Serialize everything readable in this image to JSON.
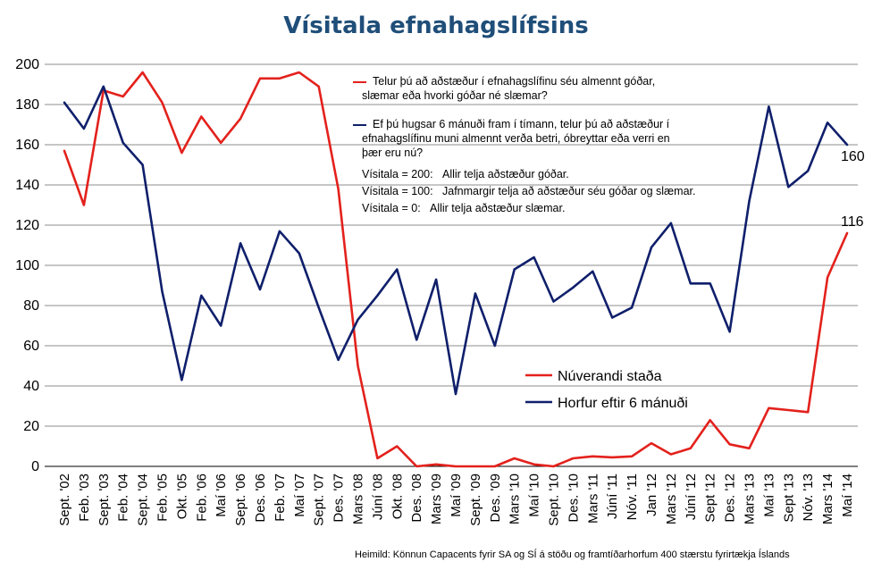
{
  "chart_data": {
    "type": "line",
    "title": "Vísitala efnahagslífsins",
    "xlabel": "",
    "ylabel": "",
    "ylim": [
      0,
      200
    ],
    "yticks": [
      0,
      20,
      40,
      60,
      80,
      100,
      120,
      140,
      160,
      180,
      200
    ],
    "categories": [
      "Sept. '02",
      "Feb. '03",
      "Sept. '03",
      "Feb. '04",
      "Sept. '04",
      "Feb. '05",
      "Okt. '05",
      "Feb. '06",
      "Maí '06",
      "Sept. '06",
      "Des. '06",
      "Feb. '07",
      "Maí '07",
      "Sept. '07",
      "Des. '07",
      "Mars '08",
      "Júní '08",
      "Okt. '08",
      "Des. '08",
      "Mars '09",
      "Maí '09",
      "Sept. '09",
      "Des. '09",
      "Mars '10",
      "Maí '10",
      "Sept. '10",
      "Des. '10",
      "Mars '11",
      "Júní '11",
      "Nóv. '11",
      "Jan '12",
      "Mars '12",
      "Júní '12",
      "Sept '12",
      "Des. '12",
      "Mars '13",
      "Maí '13",
      "Sept '13",
      "Nóv. '13",
      "Mars '14",
      "Maí '14"
    ],
    "series": [
      {
        "name": "Núverandi staða",
        "color": "#e3211c",
        "values": [
          157,
          130,
          187,
          184,
          196,
          181,
          156,
          174,
          161,
          173,
          193,
          193,
          196,
          189,
          138,
          50,
          4,
          10,
          0,
          1,
          0,
          0,
          0,
          4,
          1,
          0,
          4,
          5,
          4.5,
          5,
          11.5,
          6,
          9,
          23,
          11,
          9,
          29,
          28,
          27,
          94,
          116
        ]
      },
      {
        "name": "Horfur eftir 6 mánuði",
        "color": "#0f1f6b",
        "values": [
          181,
          168,
          189,
          161,
          150,
          87,
          43,
          85,
          70,
          111,
          88,
          117,
          106,
          79,
          53,
          73,
          85,
          98,
          63,
          93,
          36,
          86,
          60,
          98,
          104,
          82,
          89,
          97,
          74,
          79,
          109,
          121,
          91,
          91,
          67,
          132,
          179,
          139,
          147,
          171,
          160
        ]
      }
    ],
    "end_labels": {
      "red": "116",
      "blue": "160"
    },
    "legend": [
      "Núverandi staða",
      "Horfur eftir 6 mánuði"
    ],
    "legend_position": "lower-right-center",
    "annotations": {
      "q1_line1": "Telur þú að aðstæður í efnahagslífinu séu almennt góðar,",
      "q1_line2": "slæmar eða hvorki góðar né slæmar?",
      "q2_line1": "Ef þú hugsar 6 mánuði fram í tímann, telur þú að aðstæður í",
      "q2_line2": "efnahagslífinu muni almennt verða betri, óbreyttar eða verri en",
      "q2_line3": "þær eru nú?",
      "idx200_label": "Vísitala = 200:",
      "idx200_text": "Allir telja aðstæður góðar.",
      "idx100_label": "Vísitala = 100:",
      "idx100_text": "Jafnmargir telja að aðstæður séu góðar og slæmar.",
      "idx0_label": "Vísitala = 0:",
      "idx0_text": "Allir telja aðstæður slæmar."
    },
    "source": "Heimild: Könnun Capacents fyrir SA og SÍ á stöðu og framtíðarhorfum 400 stærstu fyrirtækja Íslands"
  }
}
